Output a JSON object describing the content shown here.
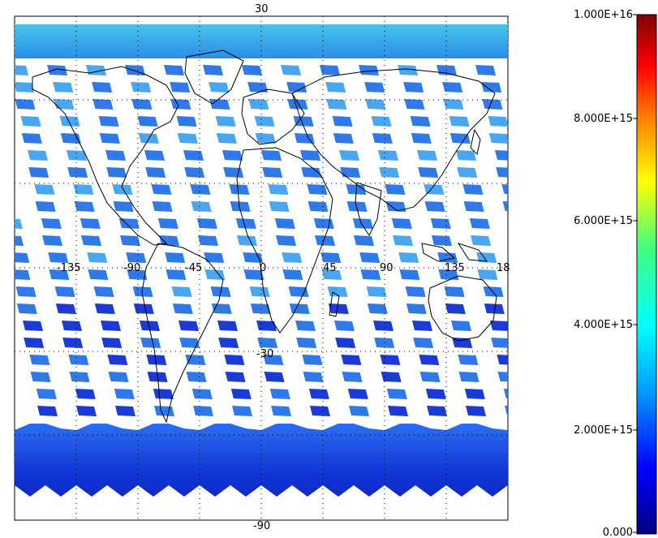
{
  "map": {
    "lon_labels": [
      "-135",
      "-90",
      "-45",
      "0",
      "45",
      "90",
      "135",
      "18"
    ],
    "lat_labels": [
      "30",
      "-30",
      "-90"
    ],
    "colors": {
      "swath_dark": "#1a3bd6",
      "swath_mid": "#2f7ae8",
      "swath_light": "#4aa6ee",
      "polar_cyan": "#36b8e8",
      "coast": "#000000"
    }
  },
  "colorbar": {
    "labels": [
      "1.000E+16",
      "8.000E+15",
      "6.000E+15",
      "4.000E+15",
      "2.000E+15",
      "0.000"
    ],
    "values": [
      1e+16,
      8000000000000000.0,
      6000000000000000.0,
      4000000000000000.0,
      2000000000000000.0,
      0
    ],
    "colors": [
      "#000080",
      "#0000ff",
      "#00a0ff",
      "#00ffff",
      "#40ff80",
      "#ffff00",
      "#ff8000",
      "#ff0000",
      "#800000"
    ]
  }
}
